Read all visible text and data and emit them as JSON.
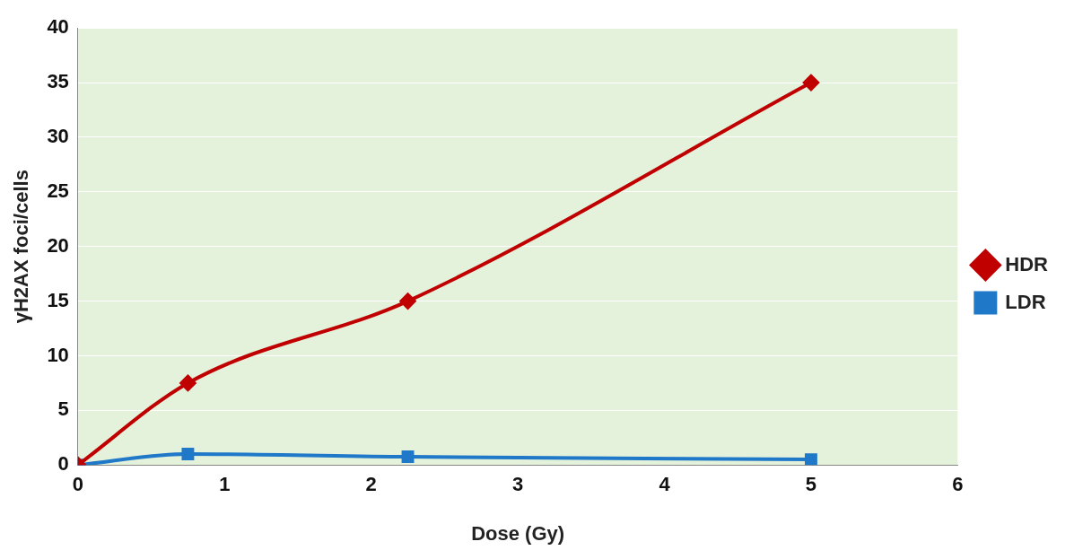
{
  "chart_data": {
    "type": "line",
    "xlabel": "Dose (Gy)",
    "ylabel": "γH2AX foci/cells",
    "x": [
      0,
      0.75,
      2.25,
      5
    ],
    "series": [
      {
        "name": "HDR",
        "color": "#c00000",
        "values": [
          0,
          7.5,
          15,
          35
        ],
        "marker": "diamond"
      },
      {
        "name": "LDR",
        "color": "#1f78c8",
        "values": [
          0,
          1,
          0.75,
          0.5
        ],
        "marker": "square"
      }
    ],
    "xlim": [
      0,
      6
    ],
    "xticks": [
      0,
      1,
      2,
      3,
      4,
      5,
      6
    ],
    "ylim": [
      0,
      40
    ],
    "yticks": [
      0,
      5,
      10,
      15,
      20,
      25,
      30,
      35,
      40
    ],
    "grid": "y",
    "legend": "right",
    "line_style": "solid"
  }
}
